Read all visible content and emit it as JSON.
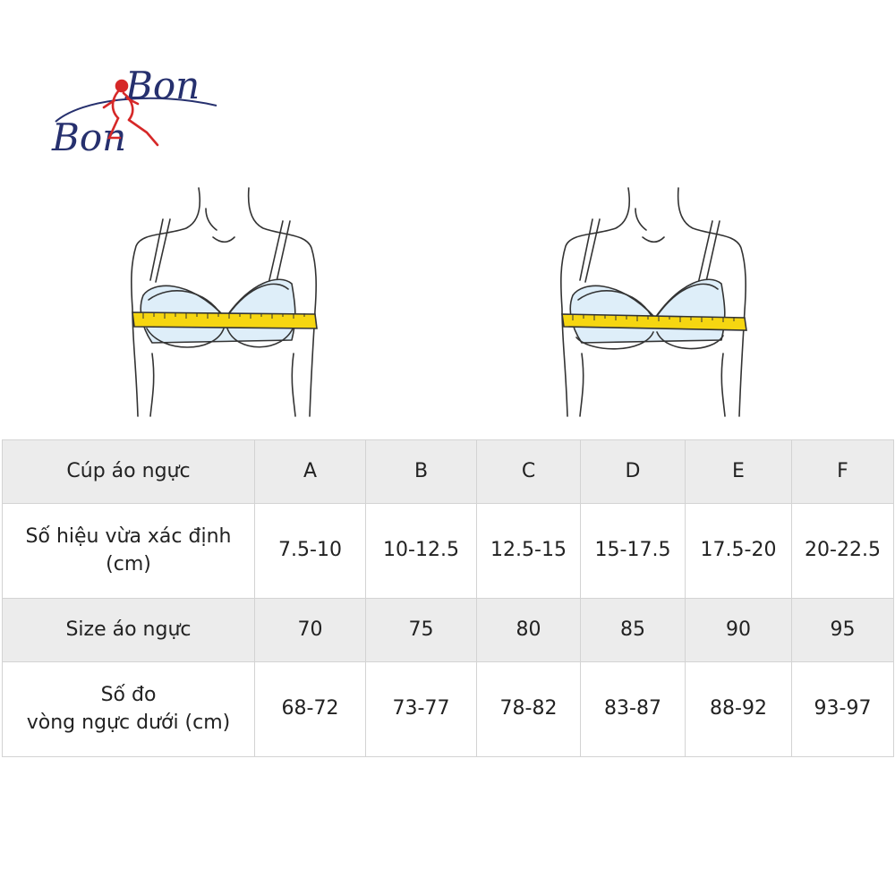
{
  "brand": {
    "logo_text_top": "Bon",
    "logo_text_bottom": "Bon",
    "colors": {
      "script": "#26306e",
      "figure": "#d62828"
    }
  },
  "illustrations": {
    "icon": "bust-measuring-tape-icon",
    "colors": {
      "bra": "#deeef9",
      "outline": "#333333",
      "tape": "#f6d611"
    }
  },
  "table": {
    "rows": [
      {
        "header": "Cúp áo ngực",
        "values": [
          "A",
          "B",
          "C",
          "D",
          "E",
          "F"
        ],
        "shaded": true
      },
      {
        "header": "Số hiệu vừa xác định\n(cm)",
        "values": [
          "7.5-10",
          "10-12.5",
          "12.5-15",
          "15-17.5",
          "17.5-20",
          "20-22.5"
        ],
        "shaded": false
      },
      {
        "header": "Size áo ngực",
        "values": [
          "70",
          "75",
          "80",
          "85",
          "90",
          "95"
        ],
        "shaded": true
      },
      {
        "header": "Số đo\nvòng ngực dưới (cm)",
        "values": [
          "68-72",
          "73-77",
          "78-82",
          "83-87",
          "88-92",
          "93-97"
        ],
        "shaded": false
      }
    ]
  }
}
